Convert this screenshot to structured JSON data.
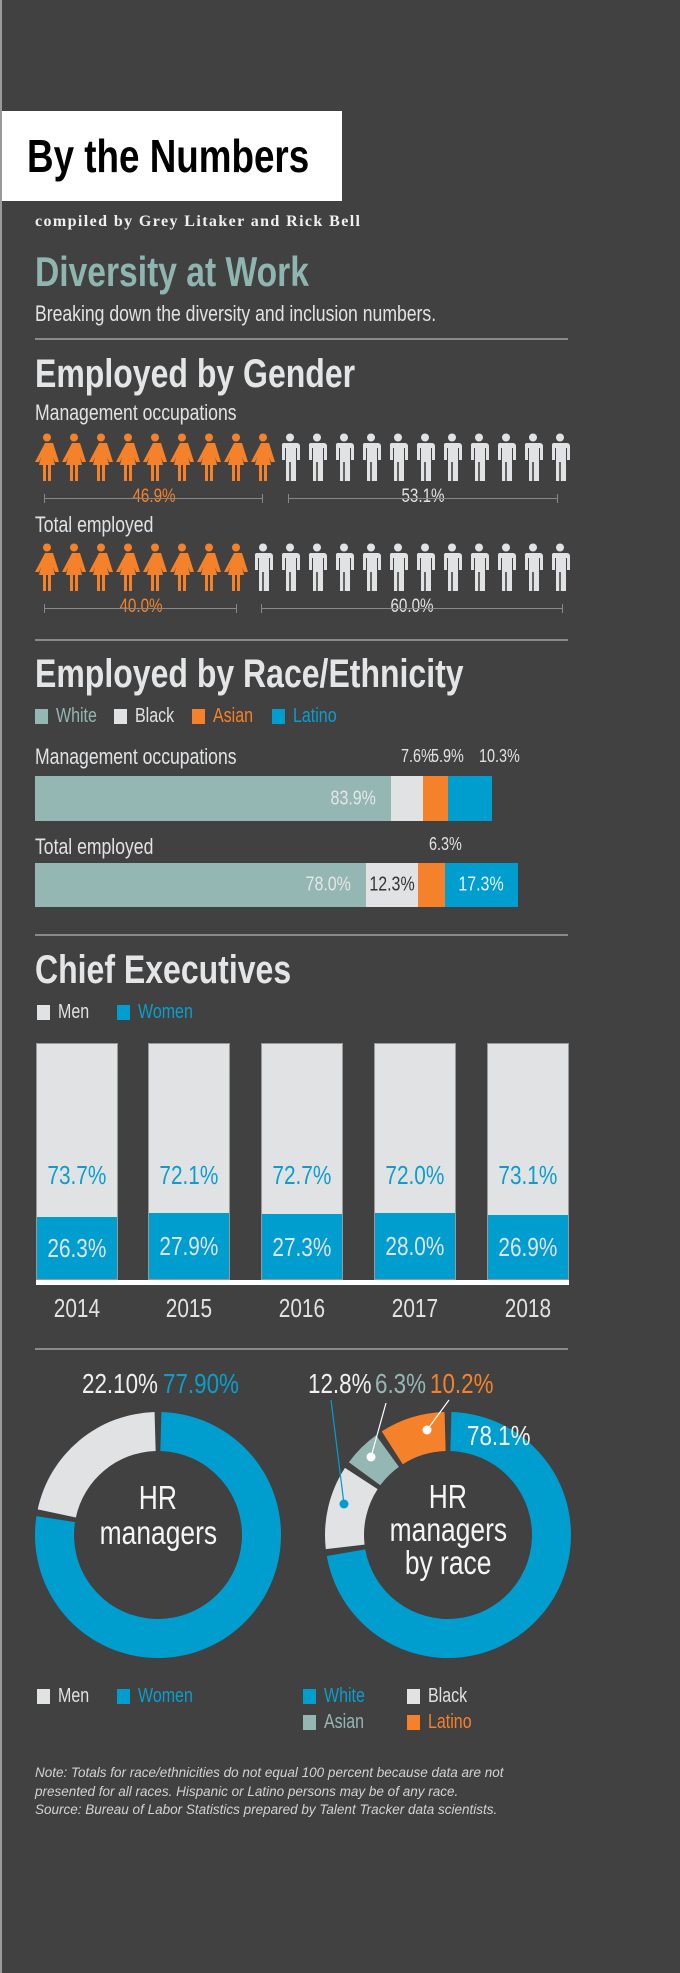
{
  "header": {
    "title": "By the Numbers",
    "byline": "compiled by Grey Litaker and Rick Bell",
    "headline": "Diversity at Work",
    "subtitle": "Breaking down the diversity and inclusion numbers."
  },
  "colors": {
    "background": "#414141",
    "women": "#f5822a",
    "men": "#e1e2e4",
    "white": "#94b7b3",
    "black": "#e1e2e4",
    "asian": "#f5822a",
    "latino": "#009ecf",
    "blue": "#009ecf"
  },
  "gender": {
    "title": "Employed by Gender",
    "rows": [
      {
        "label": "Management occupations",
        "women_pct": "46.9%",
        "men_pct": "53.1%",
        "women_icons": 9,
        "men_icons": 11
      },
      {
        "label": "Total employed",
        "women_pct": "40.0%",
        "men_pct": "60.0%",
        "women_icons": 8,
        "men_icons": 12
      }
    ]
  },
  "chart_data": [
    {
      "type": "bar",
      "stacked": true,
      "orientation": "horizontal",
      "title": "Employed by Race/Ethnicity",
      "legend": [
        "White",
        "Black",
        "Asian",
        "Latino"
      ],
      "categories": [
        "Management occupations",
        "Total employed"
      ],
      "series": [
        {
          "name": "White",
          "values": [
            83.9,
            78.0
          ],
          "labels": [
            "83.9%",
            "78.0%"
          ]
        },
        {
          "name": "Black",
          "values": [
            7.6,
            12.3
          ],
          "labels": [
            "7.6%",
            "12.3%"
          ]
        },
        {
          "name": "Asian",
          "values": [
            5.9,
            6.3
          ],
          "labels": [
            "5.9%",
            "6.3%"
          ]
        },
        {
          "name": "Latino",
          "values": [
            10.3,
            17.3
          ],
          "labels": [
            "10.3%",
            "17.3%"
          ]
        }
      ]
    },
    {
      "type": "bar",
      "stacked": true,
      "title": "Chief Executives",
      "legend": [
        "Men",
        "Women"
      ],
      "categories": [
        "2014",
        "2015",
        "2016",
        "2017",
        "2018"
      ],
      "series": [
        {
          "name": "Men",
          "values": [
            73.7,
            72.1,
            72.7,
            72.0,
            73.1
          ],
          "labels": [
            "73.7%",
            "72.1%",
            "72.7%",
            "72.0%",
            "73.1%"
          ]
        },
        {
          "name": "Women",
          "values": [
            26.3,
            27.9,
            27.3,
            28.0,
            26.9
          ],
          "labels": [
            "26.3%",
            "27.9%",
            "27.3%",
            "28.0%",
            "26.9%"
          ]
        }
      ]
    },
    {
      "type": "pie",
      "donut": true,
      "center_label": [
        "HR",
        "managers"
      ],
      "legend": [
        "Men",
        "Women"
      ],
      "slices": [
        {
          "name": "Women",
          "value": 77.9,
          "label": "77.90%"
        },
        {
          "name": "Men",
          "value": 22.1,
          "label": "22.10%"
        }
      ]
    },
    {
      "type": "pie",
      "donut": true,
      "center_label": [
        "HR",
        "managers",
        "by race"
      ],
      "legend": [
        "White",
        "Black",
        "Asian",
        "Latino"
      ],
      "slices": [
        {
          "name": "White",
          "value": 78.1,
          "label": "78.1%"
        },
        {
          "name": "Black",
          "value": 12.8,
          "label": "12.8%"
        },
        {
          "name": "Asian",
          "value": 6.3,
          "label": "6.3%"
        },
        {
          "name": "Latino",
          "value": 10.2,
          "label": "10.2%"
        }
      ]
    }
  ],
  "note": "Note: Totals for race/ethnicities do not equal 100 percent because data are not presented for all races. Hispanic or Latino persons may be of any race.",
  "source": "Source: Bureau of Labor Statistics prepared by Talent Tracker data scientists."
}
